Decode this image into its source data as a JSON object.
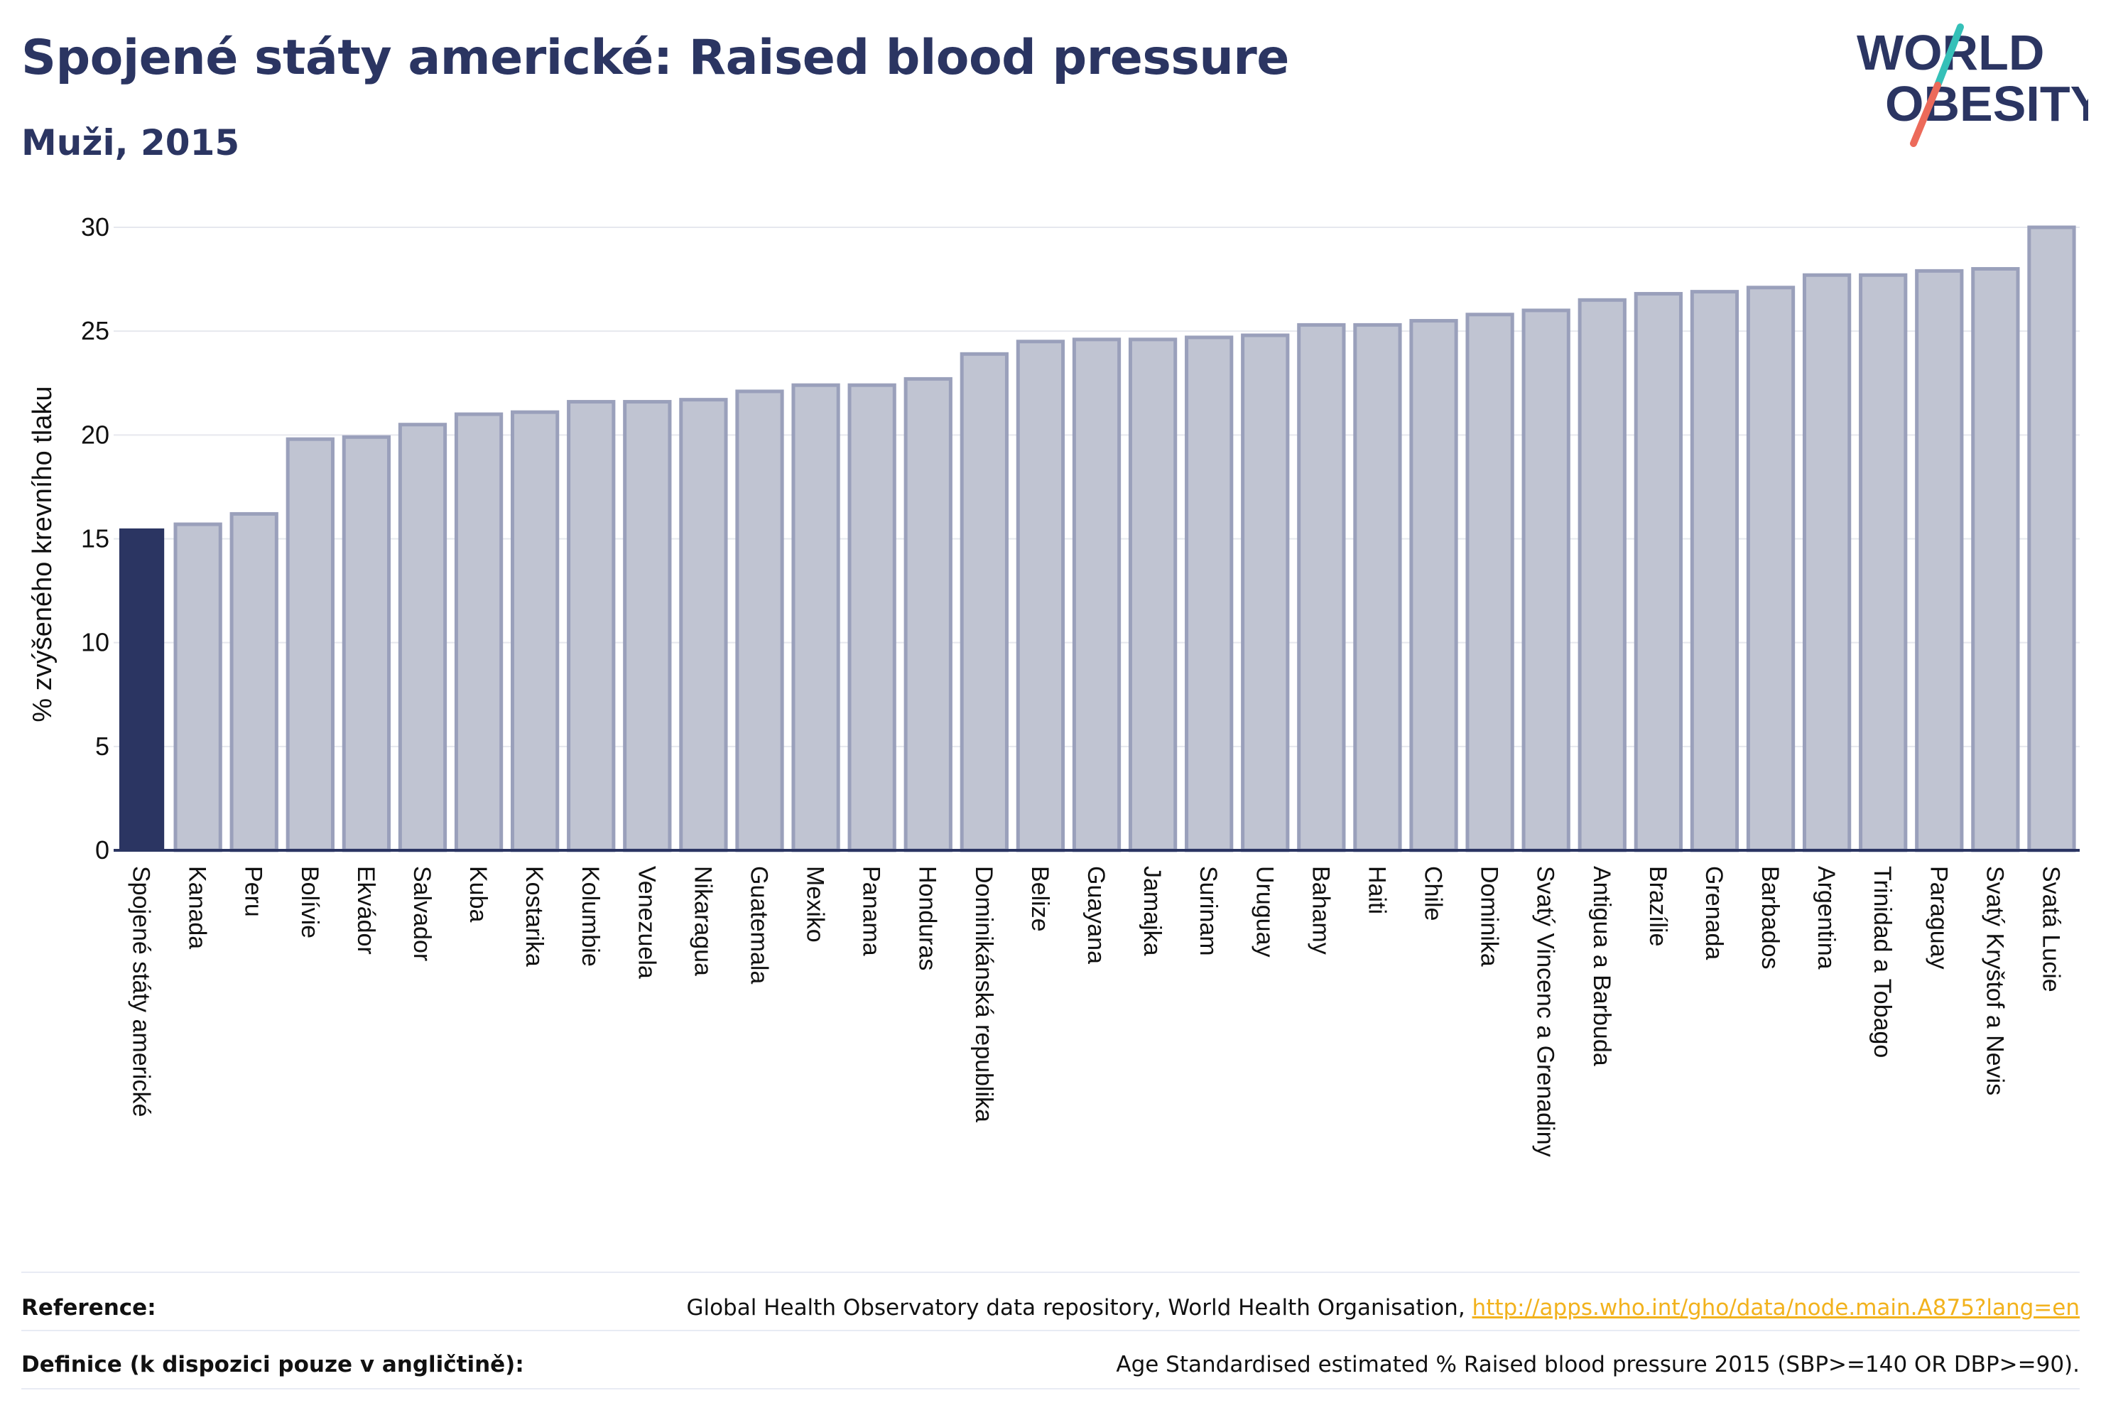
{
  "header": {
    "title": "Spojené státy americké: Raised blood pressure",
    "subtitle": "Muži, 2015"
  },
  "logo": {
    "line1": "WORLD",
    "line2": "OBESITY"
  },
  "colors": {
    "highlight_bar": "#2b3562",
    "bar_fill": "#c0c4d2",
    "bar_stroke": "#9aa0bb",
    "text": "#2b3562",
    "link": "#f2b21d"
  },
  "chart_data": {
    "type": "bar",
    "ylabel": "% zvýšeného krevního tlaku",
    "ylim": [
      0,
      30
    ],
    "yticks": [
      0,
      5,
      10,
      15,
      20,
      25,
      30
    ],
    "grid": true,
    "highlight_category": "Spojené státy americké",
    "categories": [
      "Spojené státy americké",
      "Kanada",
      "Peru",
      "Bolívie",
      "Ekvádor",
      "Salvador",
      "Kuba",
      "Kostarika",
      "Kolumbie",
      "Venezuela",
      "Nikaragua",
      "Guatemala",
      "Mexiko",
      "Panama",
      "Honduras",
      "Dominikánská republika",
      "Belize",
      "Guayana",
      "Jamajka",
      "Surinam",
      "Uruguay",
      "Bahamy",
      "Haiti",
      "Chile",
      "Dominika",
      "Svatý Vincenc a Grenadiny",
      "Antigua a Barbuda",
      "Brazílie",
      "Grenada",
      "Barbados",
      "Argentina",
      "Trinidad a Tobago",
      "Paraguay",
      "Svatý Kryštof a Nevis",
      "Svatá Lucie"
    ],
    "values": [
      15.5,
      15.7,
      16.2,
      19.8,
      19.9,
      20.5,
      21.0,
      21.1,
      21.6,
      21.6,
      21.7,
      22.1,
      22.4,
      22.4,
      22.7,
      23.9,
      24.5,
      24.6,
      24.6,
      24.7,
      24.8,
      25.3,
      25.3,
      25.5,
      25.8,
      26.0,
      26.5,
      26.8,
      26.9,
      27.1,
      27.7,
      27.7,
      27.9,
      28.0,
      30.0
    ]
  },
  "footer": {
    "reference_label": "Reference:",
    "reference_text": "Global Health Observatory data repository, World Health Organisation,",
    "reference_link": "http://apps.who.int/gho/data/node.main.A875?lang=en",
    "definition_label": "Definice (k dispozici pouze v angličtině):",
    "definition_text": "Age Standardised estimated % Raised blood pressure 2015 (SBP>=140 OR DBP>=90)."
  }
}
